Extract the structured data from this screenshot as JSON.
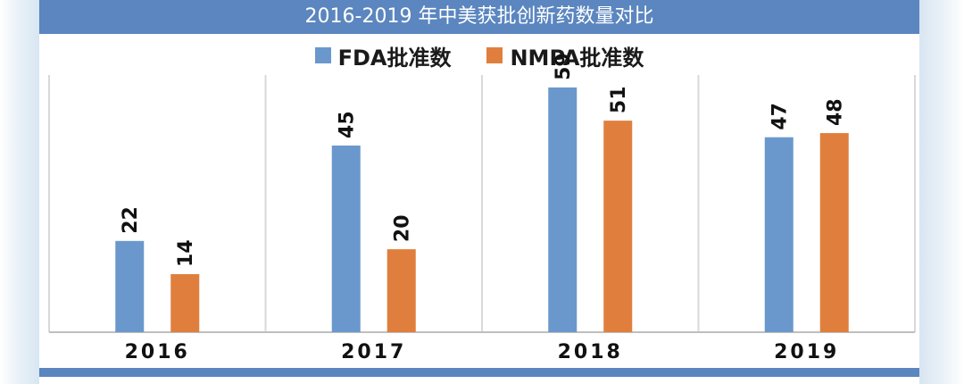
{
  "chart_data": {
    "type": "bar",
    "title": "2016-2019 年中美获批创新药数量对比",
    "categories": [
      "2016",
      "2017",
      "2018",
      "2019"
    ],
    "series": [
      {
        "name": "FDA批准数",
        "color": "#6a98cc",
        "values": [
          22,
          45,
          59,
          47
        ]
      },
      {
        "name": "NMPA批准数",
        "color": "#e07f3d",
        "values": [
          14,
          20,
          51,
          48
        ]
      }
    ],
    "xlabel": "",
    "ylabel": "",
    "ylim": [
      0,
      62
    ],
    "grid": false,
    "legend": "top-center"
  },
  "colors": {
    "header": "#5b86bf",
    "divider": "#d9d9d9",
    "axis": "#bfbfbf"
  }
}
